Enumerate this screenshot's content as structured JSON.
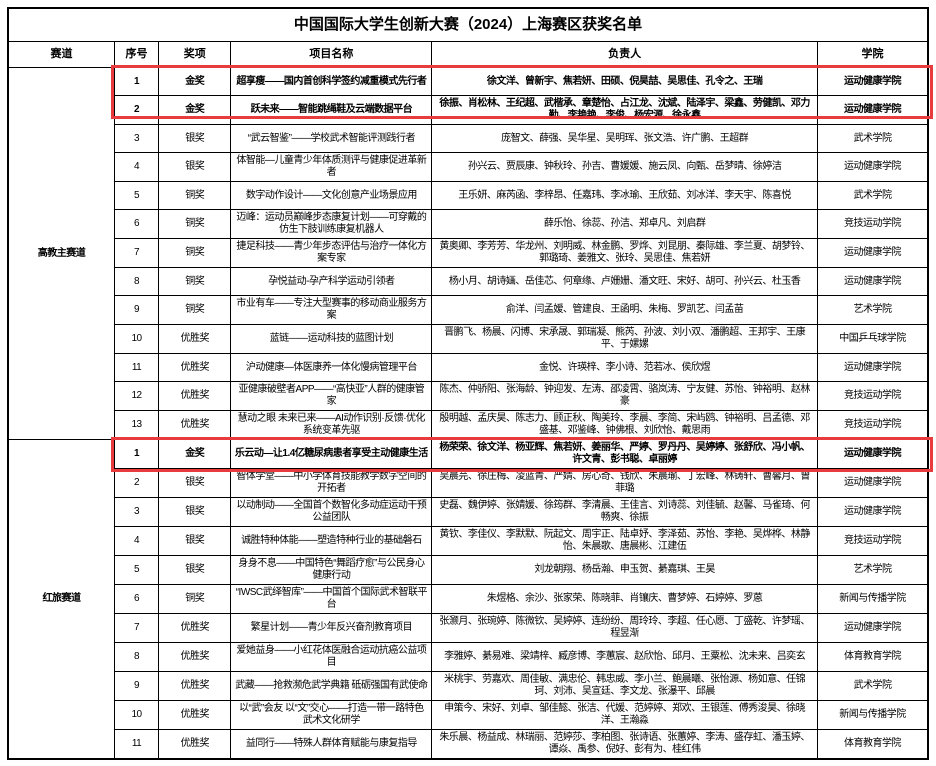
{
  "title": "中国国际大学生创新大赛（2024）上海赛区获奖名单",
  "columns": [
    "赛道",
    "序号",
    "奖项",
    "项目名称",
    "负责人",
    "学院"
  ],
  "highlight_color": "#e73b3d",
  "sections": [
    {
      "track": "高教主赛道",
      "rows": [
        {
          "no": "1",
          "award": "金奖",
          "project": "超享瘦——国内首创科学签约减重模式先行者",
          "members": "徐文洋、曾新宇、焦若妍、田硕、倪昊喆、吴思佳、孔令之、王瑞",
          "college": "运动健康学院",
          "highlight": "box1",
          "bold": true
        },
        {
          "no": "2",
          "award": "金奖",
          "project": "跃未来——智能跳绳鞋及云端数据平台",
          "members": "徐振、肖松林、王纪超、武楷承、章楚怡、占江龙、沈斌、陆泽宇、梁鑫、劳健凯、邓力勤、李艳艳、李俊、杨宏源、徐永鑫",
          "college": "运动健康学院",
          "highlight": "box1",
          "bold": true
        },
        {
          "no": "3",
          "award": "银奖",
          "project": "“武云智鉴”——学校武术智能评测践行者",
          "members": "庞智文、薛强、吴华星、吴明珲、张文浩、许广鹏、王超群",
          "college": "武术学院"
        },
        {
          "no": "4",
          "award": "银奖",
          "project": "体智能—儿童青少年体质测评与健康促进革新者",
          "members": "孙兴云、贾辰康、钟秋玲、孙吉、曹媛媛、施云凤、向甄、岳梦晴、徐婷洁",
          "college": "运动健康学院"
        },
        {
          "no": "5",
          "award": "铜奖",
          "project": "数字动作设计——文化创意产业场景应用",
          "members": "王乐妍、麻芮函、李梓昂、任嘉玮、李冰瑜、王欣茹、刘冰洋、李天宇、陈喜悦",
          "college": "武术学院"
        },
        {
          "no": "6",
          "award": "铜奖",
          "project": "迈峰：运动员巅峰步态康复计划——可穿戴的仿生下肢训练康复机器人",
          "members": "薛乐怡、徐蕊、孙洁、郑卓凡、刘启群",
          "college": "竞技运动学院"
        },
        {
          "no": "7",
          "award": "铜奖",
          "project": "捷足科技——青少年步态评估与治疗一体化方案专家",
          "members": "黄奥卿、李芳芳、华龙州、刘明威、林金鹏、罗烨、刘昆朋、秦际雄、李兰夏、胡梦铃、郭璐琦、姜雅文、张玲、吴思佳、焦若妍",
          "college": "运动健康学院"
        },
        {
          "no": "8",
          "award": "铜奖",
          "project": "孕悦益动-孕产科学运动引领者",
          "members": "杨小月、胡诗婳、岳佳芯、何章缘、卢姗姗、潘文旺、宋好、胡可、孙兴云、杜玉香",
          "college": "运动健康学院"
        },
        {
          "no": "9",
          "award": "铜奖",
          "project": "市业有车——专注大型赛事的移动商业服务方案",
          "members": "俞洋、闫孟嫒、管建良、王函明、朱梅、罗凯艺、闫孟苗",
          "college": "艺术学院"
        },
        {
          "no": "10",
          "award": "优胜奖",
          "project": "蓝链——运动科技的蓝图计划",
          "members": "晋鹏飞、杨晨、闪博、宋承晟、郭瑞凝、熊芮、孙波、刘小双、潘鹏超、王邦宇、王康平、于嫘嫘",
          "college": "中国乒乓球学院"
        },
        {
          "no": "11",
          "award": "优胜奖",
          "project": "沪动健康—体医康养一体化慢病管理平台",
          "members": "金悦、许瑛梓、李小诗、范若冰、侯欣煜",
          "college": "运动健康学院"
        },
        {
          "no": "12",
          "award": "优胜奖",
          "project": "亚健康破壁者APP——“高快亚”人群的健康管家",
          "members": "陈杰、仲骄阳、张海龄、钟迎发、左涛、邵凌霄、骆岚涛、宁友健、苏怡、钟裕明、赵林豪",
          "college": "竞技运动学院"
        },
        {
          "no": "13",
          "award": "优胜奖",
          "project": "慧动之眼 未来已来——AI动作识别·反馈·优化系统变革先驱",
          "members": "殷明越、孟庆昊、陈志力、顾正秋、陶美玲、李晨、李简、宋屿鸥、钟裕明、吕孟德、邓盛基、邓鉴峰、钟佛根、刘欣怡、戴思雨",
          "college": "竞技运动学院"
        }
      ]
    },
    {
      "track": "红旅赛道",
      "rows": [
        {
          "no": "1",
          "award": "金奖",
          "project": "乐云动—让1.4亿糖尿病患者享受主动健康生活",
          "members": "杨荣荣、徐文洋、杨亚辉、焦若妍、姜丽华、严婷、罗丹丹、吴婷婷、张舒欣、冯小帆、许文青、彭书聪、卓丽婷",
          "college": "运动健康学院",
          "highlight": "box2",
          "bold": true
        },
        {
          "no": "2",
          "award": "银奖",
          "project": "智体学堂——中小学体育技能教学数字空间的开拓者",
          "members": "吴晨芫、徐庄梅、凌蓝青、严婧、房心奇、钱欣、朱晨瑜、丁宏峰、林铸轩、曹馨月、曾菲璐",
          "college": "运动健康学院"
        },
        {
          "no": "3",
          "award": "银奖",
          "project": "以动制动——全国首个数智化多动症运动干预公益团队",
          "members": "史磊、魏伊婷、张婧媛、徐筠群、李清晨、王佳言、刘诗蕊、刘佳毓、赵馨、马雀琦、何畅爽、徐振",
          "college": "运动健康学院"
        },
        {
          "no": "4",
          "award": "银奖",
          "project": "诚胜特种体能——塑造特种行业的基础磐石",
          "members": "黄钦、李佳仪、李默默、阮起文、周宇正、陆卓妤、李泽茹、苏怡、李艳、吴烨桦、林静怡、朱晨歌、唐晨彬、江建伍",
          "college": "竞技运动学院"
        },
        {
          "no": "5",
          "award": "银奖",
          "project": "身身不息——中国特色“舞蹈疗愈”与公民身心健康行动",
          "members": "刘龙朝翔、杨岳瀚、申玉贺、綦嘉琪、王昊",
          "college": "艺术学院"
        },
        {
          "no": "6",
          "award": "铜奖",
          "project": "“IWSC武绎智库”——中国首个国际武术智联平台",
          "members": "朱煜格、余沙、张家荣、陈晓菲、肖镶庆、曹梦婷、石婷婷、罗蒽",
          "college": "新闻与传播学院"
        },
        {
          "no": "7",
          "award": "优胜奖",
          "project": "繁星计划——青少年反兴奋剂教育项目",
          "members": "张灏月、张琬婷、陈微钦、吴婷婷、连纷纷、周玲玲、李超、任心愿、丁盛乾、许梦瑶、程昱渐",
          "college": "运动健康学院"
        },
        {
          "no": "8",
          "award": "优胜奖",
          "project": "爱她益身——小红花体医融合运动抗癌公益项目",
          "members": "李雅婷、綦易难、梁靖梓、臧彦博、李蕙宸、赵欣怡、邱月、王粟松、沈未来、吕奕玄",
          "college": "体育教育学院"
        },
        {
          "no": "9",
          "award": "优胜奖",
          "project": "武藏——抢救濒危武学典籍 砥砺强国有武使命",
          "members": "米桃宇、劳嘉欢、周佳敏、满忠伦、韩忠威、李小兰、鲍晨曦、张怡源、杨如意、任锦珂、刘沛、吴宣廷、李文龙、张瀑平、邱晨",
          "college": "武术学院"
        },
        {
          "no": "10",
          "award": "优胜奖",
          "project": "以“武”会友 以“文”交心——打造一带一路特色武术文化研学",
          "members": "申策今、宋好、刘卓、邹佳懿、张洁、代媛、范婷婷、郑欢、王银莲、傅秀浚昊、徐晓洋、王瀚淼",
          "college": "新闻与传播学院"
        },
        {
          "no": "11",
          "award": "优胜奖",
          "project": "益同行——特殊人群体育赋能与康复指导",
          "members": "朱乐晨、杨益成、林瑞丽、范婷莎、李柏图、张诗语、张蕙婷、李涛、盛存虹、潘玉婷、谭焱、禹参、倪好、彭有为、桂红伟",
          "college": "体育教育学院"
        }
      ]
    }
  ]
}
